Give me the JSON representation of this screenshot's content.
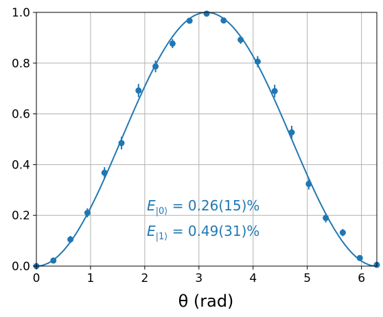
{
  "chart_data": {
    "type": "scatter",
    "title": "",
    "xlabel": "θ (rad)",
    "ylabel": "",
    "xlim": [
      0,
      6.2832
    ],
    "ylim": [
      0,
      1.0
    ],
    "xticks": [
      0,
      1,
      2,
      3,
      4,
      5,
      6
    ],
    "xtick_labels": [
      "0",
      "1",
      "2",
      "3",
      "4",
      "5",
      "6"
    ],
    "yticks": [
      0.0,
      0.2,
      0.4,
      0.6,
      0.8,
      1.0
    ],
    "ytick_labels": [
      "0.0",
      "0.2",
      "0.4",
      "0.6",
      "0.8",
      "1.0"
    ],
    "grid": true,
    "color": "#1f77b4",
    "series": [
      {
        "kind": "errorbar-points",
        "x": [
          0.0,
          0.314,
          0.628,
          0.942,
          1.257,
          1.571,
          1.885,
          2.199,
          2.513,
          2.827,
          3.142,
          3.456,
          3.77,
          4.084,
          4.398,
          4.712,
          5.027,
          5.341,
          5.655,
          5.969,
          6.283
        ],
        "y": [
          0.0,
          0.022,
          0.105,
          0.21,
          0.368,
          0.485,
          0.692,
          0.787,
          0.877,
          0.967,
          0.995,
          0.968,
          0.892,
          0.806,
          0.69,
          0.527,
          0.324,
          0.19,
          0.132,
          0.032,
          0.005
        ],
        "yerr": [
          0.004,
          0.006,
          0.014,
          0.018,
          0.022,
          0.025,
          0.026,
          0.023,
          0.018,
          0.01,
          0.006,
          0.01,
          0.016,
          0.022,
          0.025,
          0.026,
          0.022,
          0.018,
          0.014,
          0.008,
          0.004
        ]
      },
      {
        "kind": "fit-curve",
        "function": "sin^2(x/2)"
      }
    ],
    "annotations": [
      {
        "base": "E",
        "sub": "|0⟩",
        "rest": " = 0.26(15)%"
      },
      {
        "base": "E",
        "sub": "|1⟩",
        "rest": " = 0.49(31)%"
      }
    ]
  }
}
